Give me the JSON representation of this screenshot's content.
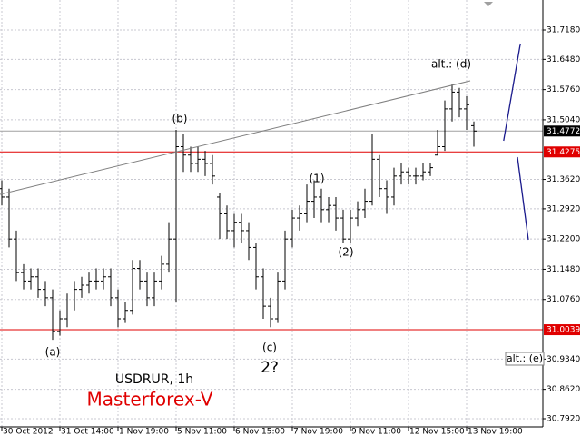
{
  "chart_data": {
    "type": "ohlc",
    "color": "#000000",
    "open": [
      31.34,
      31.32,
      31.22,
      31.14,
      31.12,
      31.13,
      31.1,
      31.08,
      31.0,
      31.03,
      31.07,
      31.1,
      31.11,
      31.12,
      31.12,
      31.13,
      31.08,
      31.03,
      31.05,
      31.15,
      31.12,
      31.08,
      31.12,
      31.16,
      31.22,
      31.44,
      31.42,
      31.4,
      31.41,
      31.4,
      31.32,
      31.28,
      31.24,
      31.26,
      31.24,
      31.2,
      31.13,
      31.06,
      31.03,
      31.12,
      31.22,
      31.27,
      31.28,
      31.31,
      31.32,
      31.29,
      31.3,
      31.27,
      31.22,
      31.27,
      31.29,
      31.31,
      31.41,
      31.34,
      31.32,
      31.37,
      31.38,
      31.37,
      31.37,
      31.38,
      31.42,
      31.44,
      31.53,
      31.57,
      31.53,
      31.49
    ],
    "high": [
      31.36,
      31.34,
      31.24,
      31.16,
      31.15,
      31.15,
      31.12,
      31.1,
      31.05,
      31.09,
      31.12,
      31.13,
      31.14,
      31.15,
      31.15,
      31.15,
      31.1,
      31.07,
      31.17,
      31.17,
      31.14,
      31.14,
      31.18,
      31.26,
      31.48,
      31.47,
      31.44,
      31.44,
      31.43,
      31.42,
      31.33,
      31.3,
      31.28,
      31.28,
      31.26,
      31.21,
      31.15,
      31.08,
      31.14,
      31.24,
      31.29,
      31.3,
      31.35,
      31.36,
      31.34,
      31.32,
      31.32,
      31.29,
      31.29,
      31.31,
      31.34,
      31.47,
      31.42,
      31.36,
      31.39,
      31.4,
      31.39,
      31.39,
      31.4,
      31.4,
      31.48,
      31.55,
      31.59,
      31.58,
      31.56,
      31.5
    ],
    "low": [
      31.3,
      31.2,
      31.12,
      31.1,
      31.1,
      31.08,
      31.06,
      30.98,
      30.99,
      31.01,
      31.05,
      31.08,
      31.09,
      31.1,
      31.1,
      31.06,
      31.01,
      31.02,
      31.04,
      31.1,
      31.06,
      31.06,
      31.1,
      31.14,
      31.07,
      31.38,
      31.38,
      31.38,
      31.37,
      31.35,
      31.22,
      31.22,
      31.2,
      31.21,
      31.17,
      31.1,
      31.03,
      31.01,
      31.02,
      31.1,
      31.2,
      31.24,
      31.26,
      31.27,
      31.26,
      31.26,
      31.24,
      31.21,
      31.21,
      31.25,
      31.27,
      31.3,
      31.32,
      31.28,
      31.3,
      31.35,
      31.35,
      31.35,
      31.36,
      31.37,
      31.42,
      31.43,
      31.5,
      31.51,
      31.48,
      31.44
    ],
    "close": [
      31.32,
      31.22,
      31.14,
      31.12,
      31.13,
      31.1,
      31.08,
      31.0,
      31.03,
      31.07,
      31.1,
      31.11,
      31.12,
      31.12,
      31.13,
      31.08,
      31.03,
      31.05,
      31.15,
      31.12,
      31.08,
      31.12,
      31.16,
      31.22,
      31.44,
      31.42,
      31.4,
      31.41,
      31.4,
      31.37,
      31.28,
      31.24,
      31.26,
      31.24,
      31.2,
      31.13,
      31.06,
      31.03,
      31.12,
      31.22,
      31.27,
      31.28,
      31.31,
      31.32,
      31.29,
      31.3,
      31.27,
      31.22,
      31.27,
      31.29,
      31.31,
      31.41,
      31.34,
      31.32,
      31.37,
      31.38,
      31.37,
      31.37,
      31.38,
      31.39,
      31.44,
      31.53,
      31.57,
      31.53,
      31.54,
      31.4772
    ],
    "xlim": [
      -0.25,
      74.5
    ],
    "xticks": [
      {
        "value": 0,
        "label": "30 Oct 2012"
      },
      {
        "value": 8,
        "label": "31 Oct 14:00"
      },
      {
        "value": 16,
        "label": "1 Nov 19:00"
      },
      {
        "value": 24,
        "label": "5 Nov 11:00"
      },
      {
        "value": 32,
        "label": "6 Nov 15:00"
      },
      {
        "value": 40,
        "label": "7 Nov 19:00"
      },
      {
        "value": 48,
        "label": "9 Nov 11:00"
      },
      {
        "value": 56,
        "label": "12 Nov 15:00"
      },
      {
        "value": 64,
        "label": "13 Nov 19:00"
      }
    ],
    "ylim": [
      30.7725,
      31.7894
    ],
    "yticks": [
      {
        "value": 31.718,
        "label": "31.7180"
      },
      {
        "value": 31.648,
        "label": "31.6480"
      },
      {
        "value": 31.576,
        "label": "31.5760"
      },
      {
        "value": 31.504,
        "label": "31.5040"
      },
      {
        "value": 31.362,
        "label": "31.3620"
      },
      {
        "value": 31.292,
        "label": "31.2920"
      },
      {
        "value": 31.22,
        "label": "31.2200"
      },
      {
        "value": 31.148,
        "label": "31.1480"
      },
      {
        "value": 31.076,
        "label": "31.0760"
      },
      {
        "value": 30.934,
        "label": "30.9340"
      },
      {
        "value": 30.862,
        "label": "30.8620"
      },
      {
        "value": 30.792,
        "label": "30.7920"
      }
    ],
    "grid": true,
    "price_lines": [
      {
        "value": 31.4772,
        "color": "#a0a0a0",
        "box": "#000000"
      },
      {
        "value": 31.4275,
        "color": "#e00000",
        "box": "#e00000"
      },
      {
        "value": 31.0039,
        "color": "#e00000",
        "box": "#e00000"
      }
    ],
    "trendline": {
      "x": [
        -0.25,
        64.5
      ],
      "y": [
        31.3264,
        31.5968
      ],
      "color": "#808080"
    },
    "forecast": [
      {
        "x": [
          69.1,
          71.4
        ],
        "y": [
          31.454,
          31.6855
        ],
        "color": "#1a1a8c"
      },
      {
        "x": [
          71.0,
          72.5
        ],
        "y": [
          31.4151,
          31.2182
        ],
        "color": "#1a1a8c"
      }
    ],
    "annotations": [
      "(a)",
      "(b)",
      "(1)",
      "(2)",
      "(c)",
      "2?",
      "alt.: (d)",
      "alt.: (e)"
    ],
    "symbol": "USDRUR, 1h",
    "brand": "Masterforex-V"
  }
}
